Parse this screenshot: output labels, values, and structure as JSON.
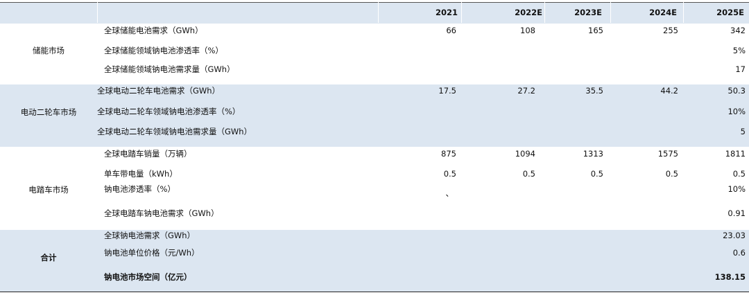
{
  "header": {
    "years": [
      "2021",
      "2022E",
      "2023E",
      "2024E",
      "2025E"
    ]
  },
  "groups": [
    {
      "label": "储能市场",
      "rows": [
        {
          "item": "全球储能电池需求（GWh）",
          "values": [
            66,
            108,
            165,
            255,
            342
          ]
        },
        {
          "item": "全球储能领域钠电池渗透率（%）",
          "values": [
            null,
            null,
            null,
            null,
            "5%"
          ]
        },
        {
          "item": "全球储能领域钠电池需求量（GWh）",
          "values": [
            null,
            null,
            null,
            null,
            17
          ]
        }
      ]
    },
    {
      "label": "电动二轮车市场",
      "rows": [
        {
          "item": "全球电动二轮车电池需求（GWh）",
          "values": [
            17.5,
            27.2,
            35.5,
            44.2,
            50.3
          ]
        },
        {
          "item": "全球电动二轮车领域钠电池渗透率（%）",
          "values": [
            null,
            null,
            null,
            null,
            "10%"
          ]
        },
        {
          "item": "全球电动二轮车领域钠电池需求量（GWh）",
          "values": [
            null,
            null,
            null,
            null,
            5
          ]
        }
      ]
    },
    {
      "label": "电踏车市场",
      "rows": [
        {
          "item": "全球电踏车销量（万辆）",
          "values": [
            875,
            1094,
            1313,
            1575,
            1811
          ]
        },
        {
          "item": "单车带电量（kWh）",
          "values": [
            0.5,
            0.5,
            0.5,
            0.5,
            0.5
          ]
        },
        {
          "item": "钠电池渗透率（%）",
          "values": [
            "、",
            null,
            null,
            null,
            "10%"
          ]
        },
        {
          "item": "全球电踏车钠电池需求（GWh）",
          "values": [
            null,
            null,
            null,
            null,
            0.91
          ]
        }
      ]
    },
    {
      "label": "合计",
      "rows": [
        {
          "item": "全球钠电池需求（GWh）",
          "values": [
            null,
            null,
            null,
            null,
            23.03
          ]
        },
        {
          "item": "钠电池单位价格（元/Wh）",
          "values": [
            null,
            null,
            null,
            null,
            0.6
          ]
        },
        {
          "item": "钠电池市场空间（亿元）",
          "values": [
            null,
            null,
            null,
            null,
            138.15
          ]
        }
      ]
    }
  ]
}
